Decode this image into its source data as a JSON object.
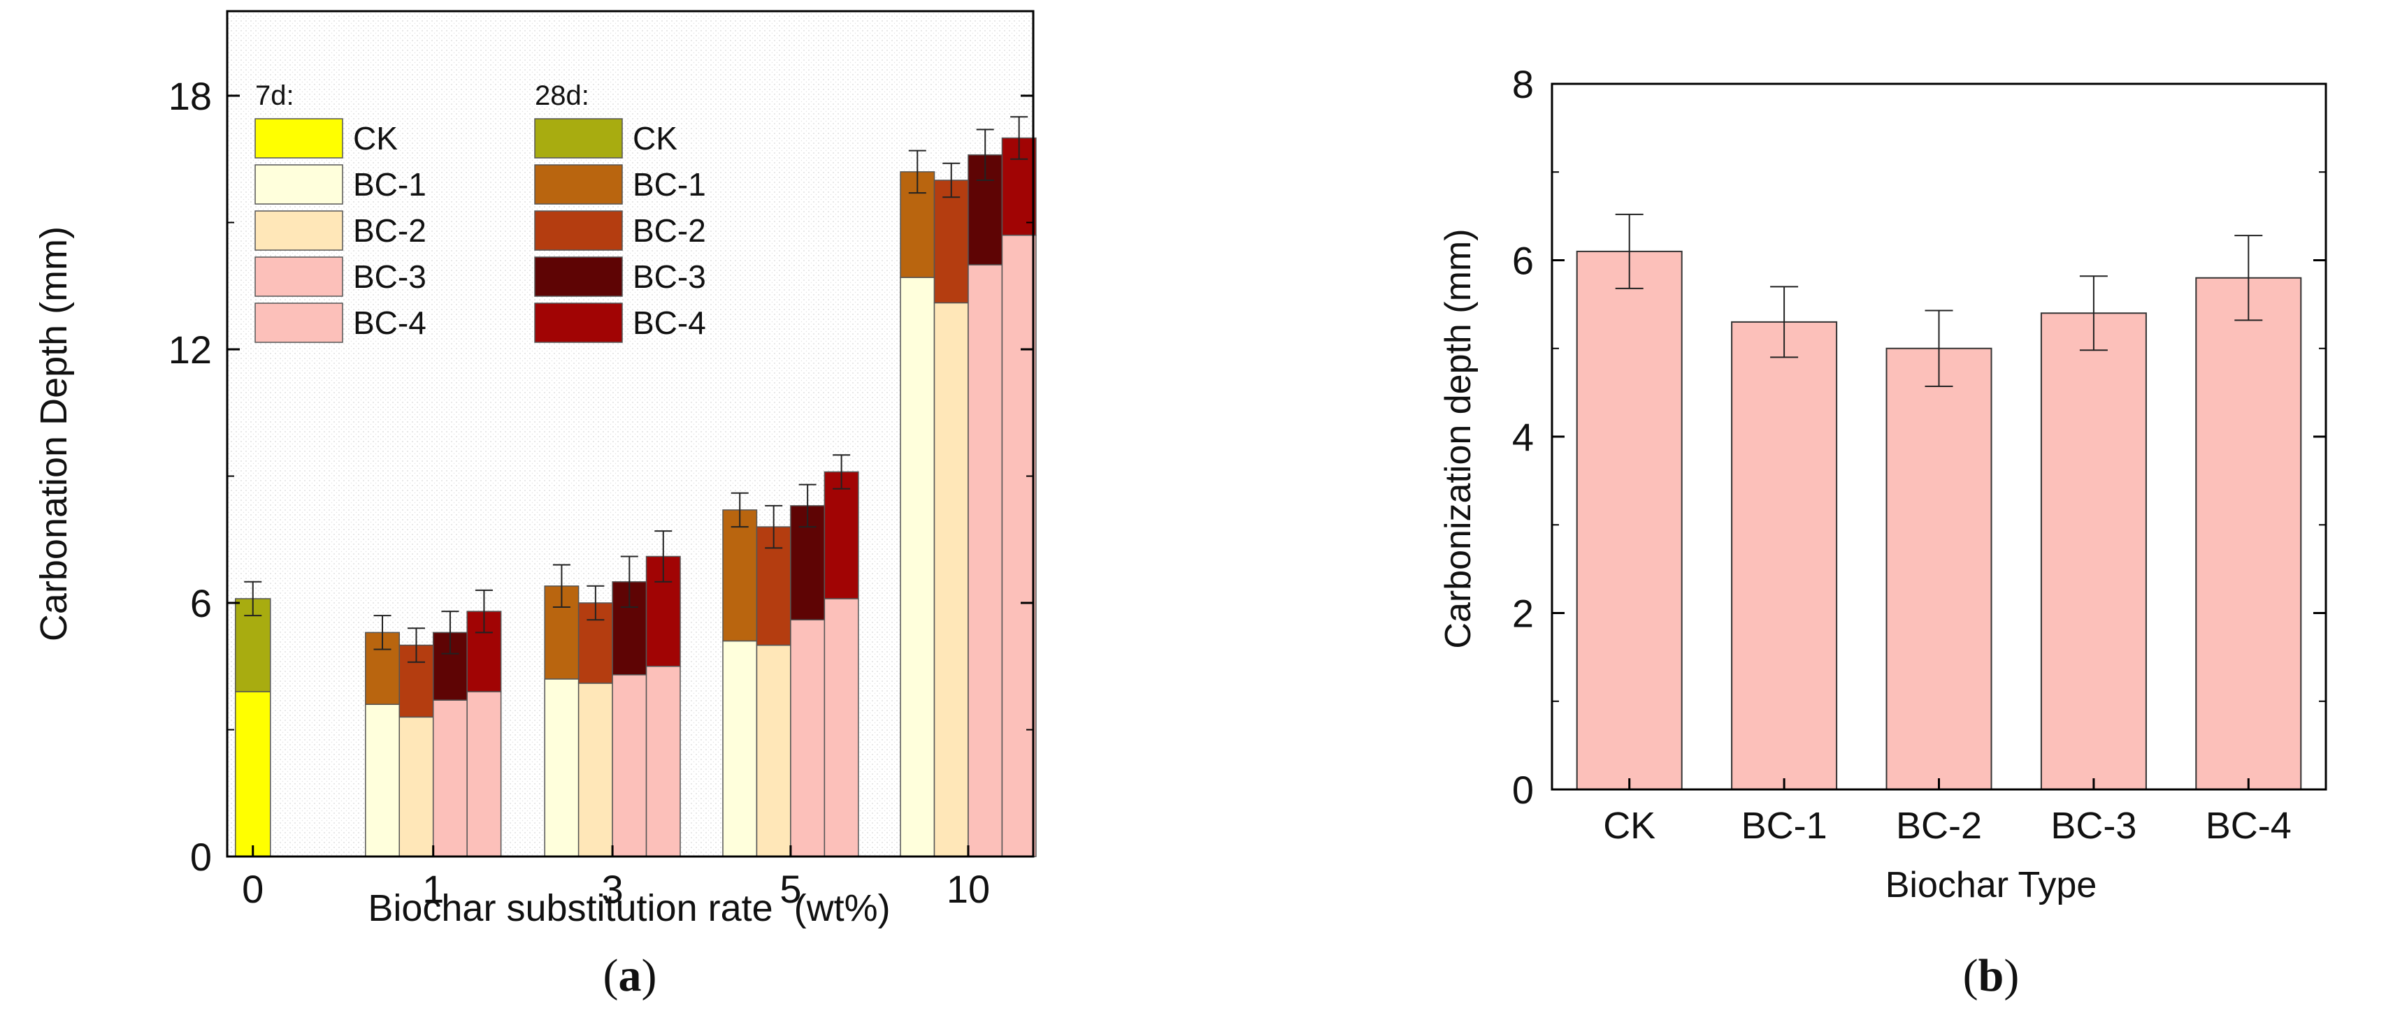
{
  "panel_a": {
    "caption_open": "(",
    "caption_letter": "a",
    "caption_close": ")",
    "legend_7d_title": "7d:",
    "legend_28d_title": "28d:"
  },
  "panel_b": {
    "caption_open": "(",
    "caption_letter": "b",
    "caption_close": ")"
  },
  "colors": {
    "bar_b": "#fcc0ba",
    "bar_b_edge": "#333333",
    "frame": "#000000"
  },
  "chart_data": [
    {
      "type": "bar",
      "stacked": true,
      "title": "",
      "xlabel": "Biochar substitution rate  (wt%)",
      "ylabel": "Carbonation Depth (mm)",
      "ylim": [
        0,
        20
      ],
      "yticks": [
        0,
        6,
        12,
        18
      ],
      "categories": [
        "0",
        "1",
        "3",
        "5",
        "10"
      ],
      "series_groups": [
        {
          "name": "CK",
          "categories": [
            "0"
          ],
          "d7": [
            3.9
          ],
          "d28": [
            6.1
          ],
          "err": [
            0.4
          ],
          "color7": "#ffff00",
          "color28": "#a8ac10"
        },
        {
          "name": "BC-1",
          "categories": [
            "1",
            "3",
            "5",
            "10"
          ],
          "d7": [
            3.6,
            4.2,
            5.1,
            13.7
          ],
          "d28": [
            5.3,
            6.4,
            8.2,
            16.2
          ],
          "err": [
            0.4,
            0.5,
            0.4,
            0.5
          ],
          "color7": "#ffffdc",
          "color28": "#b9650f"
        },
        {
          "name": "BC-2",
          "categories": [
            "1",
            "3",
            "5",
            "10"
          ],
          "d7": [
            3.3,
            4.1,
            5.0,
            13.1
          ],
          "d28": [
            5.0,
            6.0,
            7.8,
            16.0
          ],
          "err": [
            0.4,
            0.4,
            0.5,
            0.4
          ],
          "color7": "#ffe7b8",
          "color28": "#b43d10"
        },
        {
          "name": "BC-3",
          "categories": [
            "1",
            "3",
            "5",
            "10"
          ],
          "d7": [
            3.7,
            4.3,
            5.6,
            14.0
          ],
          "d28": [
            5.3,
            6.5,
            8.3,
            16.6
          ],
          "err": [
            0.5,
            0.6,
            0.5,
            0.6
          ],
          "color7": "#fcc0ba",
          "color28": "#5e0404"
        },
        {
          "name": "BC-4",
          "categories": [
            "1",
            "3",
            "5",
            "10"
          ],
          "d7": [
            3.9,
            4.5,
            6.1,
            14.7
          ],
          "d28": [
            5.8,
            7.1,
            9.1,
            17.0
          ],
          "err": [
            0.5,
            0.6,
            0.4,
            0.5
          ],
          "color7": "#fcc0ba",
          "color28": "#a10404"
        }
      ],
      "legend": {
        "placement": "top-left",
        "groups": [
          {
            "title": "7d:",
            "entries": [
              "CK",
              "BC-1",
              "BC-2",
              "BC-3",
              "BC-4"
            ]
          },
          {
            "title": "28d:",
            "entries": [
              "CK",
              "BC-1",
              "BC-2",
              "BC-3",
              "BC-4"
            ]
          }
        ]
      }
    },
    {
      "type": "bar",
      "title": "",
      "xlabel": "Biochar Type",
      "ylabel": "Carbonization depth (mm)",
      "ylim": [
        0,
        8
      ],
      "yticks": [
        0,
        2,
        4,
        6,
        8
      ],
      "categories": [
        "CK",
        "BC-1",
        "BC-2",
        "BC-3",
        "BC-4"
      ],
      "values": [
        6.1,
        5.3,
        5.0,
        5.4,
        5.8
      ],
      "errors": [
        0.42,
        0.4,
        0.43,
        0.42,
        0.48
      ]
    }
  ]
}
